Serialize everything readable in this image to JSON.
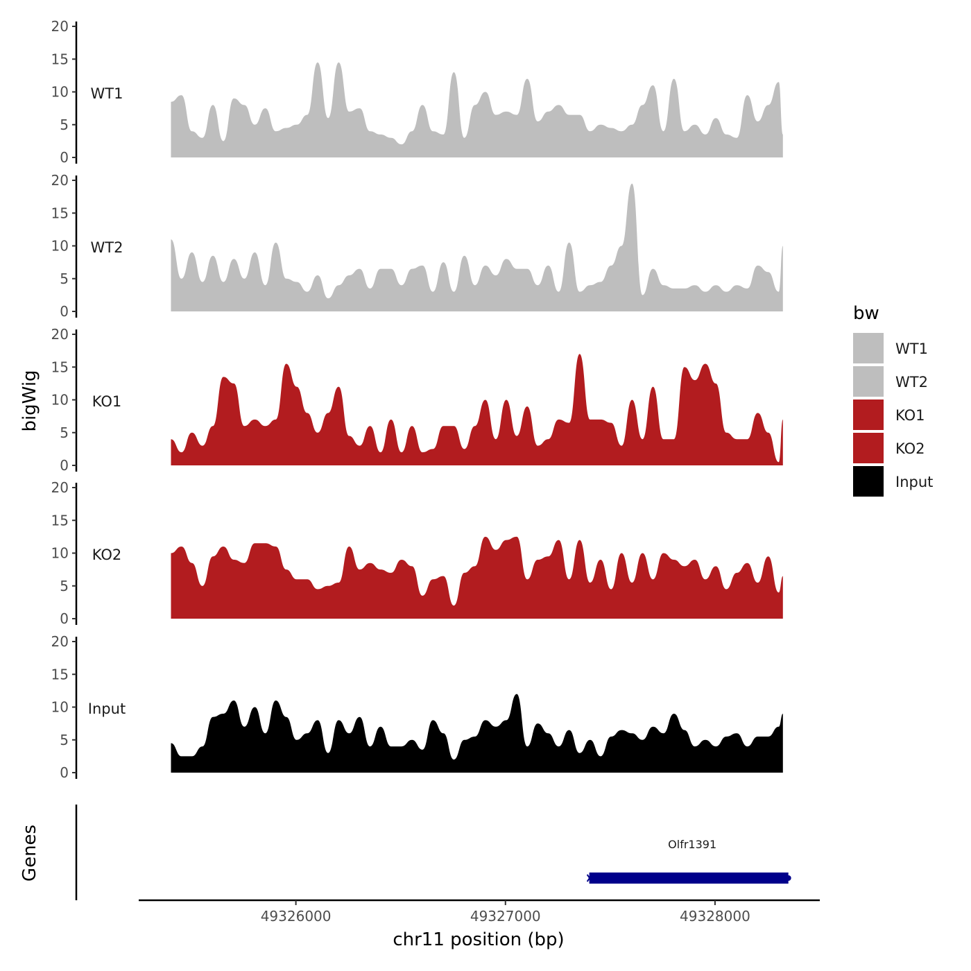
{
  "chart_data": {
    "type": "area",
    "xlabel": "chr11 position (bp)",
    "ylabel": "bigWig",
    "genes_label": "Genes",
    "xlim": [
      49325250,
      49328500
    ],
    "ylim": [
      0,
      20
    ],
    "y_ticks": [
      0,
      5,
      10,
      15,
      20
    ],
    "x_ticks": [
      49326000,
      49327000,
      49328000
    ],
    "x_tick_labels": [
      "49326000",
      "49327000",
      "49328000"
    ],
    "grid": false,
    "legend": {
      "title": "bw",
      "placement": "right",
      "entries": [
        {
          "label": "WT1",
          "color": "#bebebe"
        },
        {
          "label": "WT2",
          "color": "#bebebe"
        },
        {
          "label": "KO1",
          "color": "#b21c1f"
        },
        {
          "label": "KO2",
          "color": "#b21c1f"
        },
        {
          "label": "Input",
          "color": "#000000"
        }
      ]
    },
    "x": [
      49325404,
      49325454,
      49325504,
      49325554,
      49325604,
      49325654,
      49325704,
      49325754,
      49325804,
      49325854,
      49325904,
      49325954,
      49326004,
      49326054,
      49326104,
      49326154,
      49326204,
      49326254,
      49326304,
      49326354,
      49326404,
      49326454,
      49326504,
      49326554,
      49326604,
      49326654,
      49326704,
      49326754,
      49326804,
      49326854,
      49326904,
      49326954,
      49327004,
      49327054,
      49327104,
      49327154,
      49327204,
      49327254,
      49327304,
      49327354,
      49327404,
      49327454,
      49327504,
      49327554,
      49327604,
      49327654,
      49327704,
      49327754,
      49327804,
      49327854,
      49327904,
      49327954,
      49328004,
      49328054,
      49328104,
      49328154,
      49328204,
      49328254,
      49328304,
      49328324
    ],
    "series": [
      {
        "name": "WT1",
        "color": "#bebebe",
        "values": [
          8.5,
          9.5,
          4,
          3,
          8,
          2.5,
          9,
          8,
          5,
          7.5,
          4,
          4.5,
          5,
          6.5,
          14.5,
          6,
          14.5,
          7,
          7.5,
          4,
          3.5,
          3,
          2,
          4,
          8,
          4,
          3.5,
          13,
          3,
          8,
          10,
          6.5,
          7,
          6.5,
          12,
          5.5,
          7,
          8,
          6.5,
          6.5,
          4,
          5,
          4.5,
          4,
          5,
          8,
          11,
          4,
          12,
          4,
          5,
          3.5,
          6,
          3.5,
          3,
          9.5,
          5.5,
          8,
          11.5,
          3.5
        ]
      },
      {
        "name": "WT2",
        "color": "#bebebe",
        "values": [
          11,
          5,
          9,
          4.5,
          8.5,
          4.5,
          8,
          5,
          9,
          4,
          10.5,
          5,
          4.5,
          3,
          5.5,
          2,
          4,
          5.5,
          6.5,
          3.5,
          6.5,
          6.5,
          4,
          6.5,
          7,
          3,
          7.5,
          3,
          8.5,
          4,
          7,
          5.5,
          8,
          6.5,
          6.5,
          4,
          7,
          3,
          10.5,
          3,
          4,
          4.5,
          7,
          10,
          19.5,
          2.5,
          6.5,
          4,
          3.5,
          3.5,
          4,
          3,
          4,
          3,
          4,
          3.5,
          7,
          6,
          3,
          10
        ]
      },
      {
        "name": "KO1",
        "color": "#b21c1f",
        "values": [
          4,
          2,
          5,
          3,
          6,
          13.5,
          12.5,
          6,
          7,
          6,
          7,
          15.5,
          12,
          8,
          5,
          8,
          12,
          4.5,
          3,
          6,
          2,
          7,
          2,
          6,
          2,
          2.5,
          6,
          6,
          2.5,
          6,
          10,
          4,
          10,
          4.5,
          9,
          3,
          4,
          7,
          6.5,
          17,
          7,
          7,
          6.5,
          3,
          10,
          4,
          12,
          4,
          4,
          15,
          13,
          15.5,
          12.5,
          5,
          4,
          4,
          8,
          5,
          0.5,
          7
        ]
      },
      {
        "name": "KO2",
        "color": "#b21c1f",
        "values": [
          10,
          11,
          8.5,
          5,
          9.5,
          11,
          9,
          8.5,
          11.5,
          11.5,
          11,
          7.5,
          6,
          6,
          4.5,
          5,
          5.5,
          11,
          7.5,
          8.5,
          7.5,
          7,
          9,
          8,
          3.5,
          6,
          6.5,
          2,
          7,
          8,
          12.5,
          10.5,
          12,
          12.5,
          6,
          9,
          9.5,
          12,
          6,
          12,
          5.5,
          9,
          4.5,
          10,
          5.5,
          10,
          6,
          10,
          9,
          8,
          9,
          6,
          8,
          4.5,
          7,
          8.5,
          5.5,
          9.5,
          4,
          6.5
        ]
      },
      {
        "name": "Input",
        "color": "#000000",
        "values": [
          4.5,
          2.5,
          2.5,
          4,
          8.5,
          9,
          11,
          7,
          10,
          6,
          11,
          8.5,
          5,
          6,
          8,
          3,
          8,
          6,
          8.5,
          4,
          7,
          4,
          4,
          5,
          3.5,
          8,
          6,
          2,
          5,
          5.5,
          8,
          7,
          8,
          12,
          4,
          7.5,
          6,
          4,
          6.5,
          3,
          5,
          2.5,
          5.5,
          6.5,
          6,
          5,
          7,
          6,
          9,
          6.5,
          4,
          5,
          4,
          5.5,
          6,
          4,
          5.5,
          5.5,
          7,
          9
        ]
      }
    ],
    "genes": [
      {
        "name": "Olfr1391",
        "start": 49327400,
        "end": 49328350,
        "strand": "-",
        "color": "#00008b"
      }
    ]
  }
}
